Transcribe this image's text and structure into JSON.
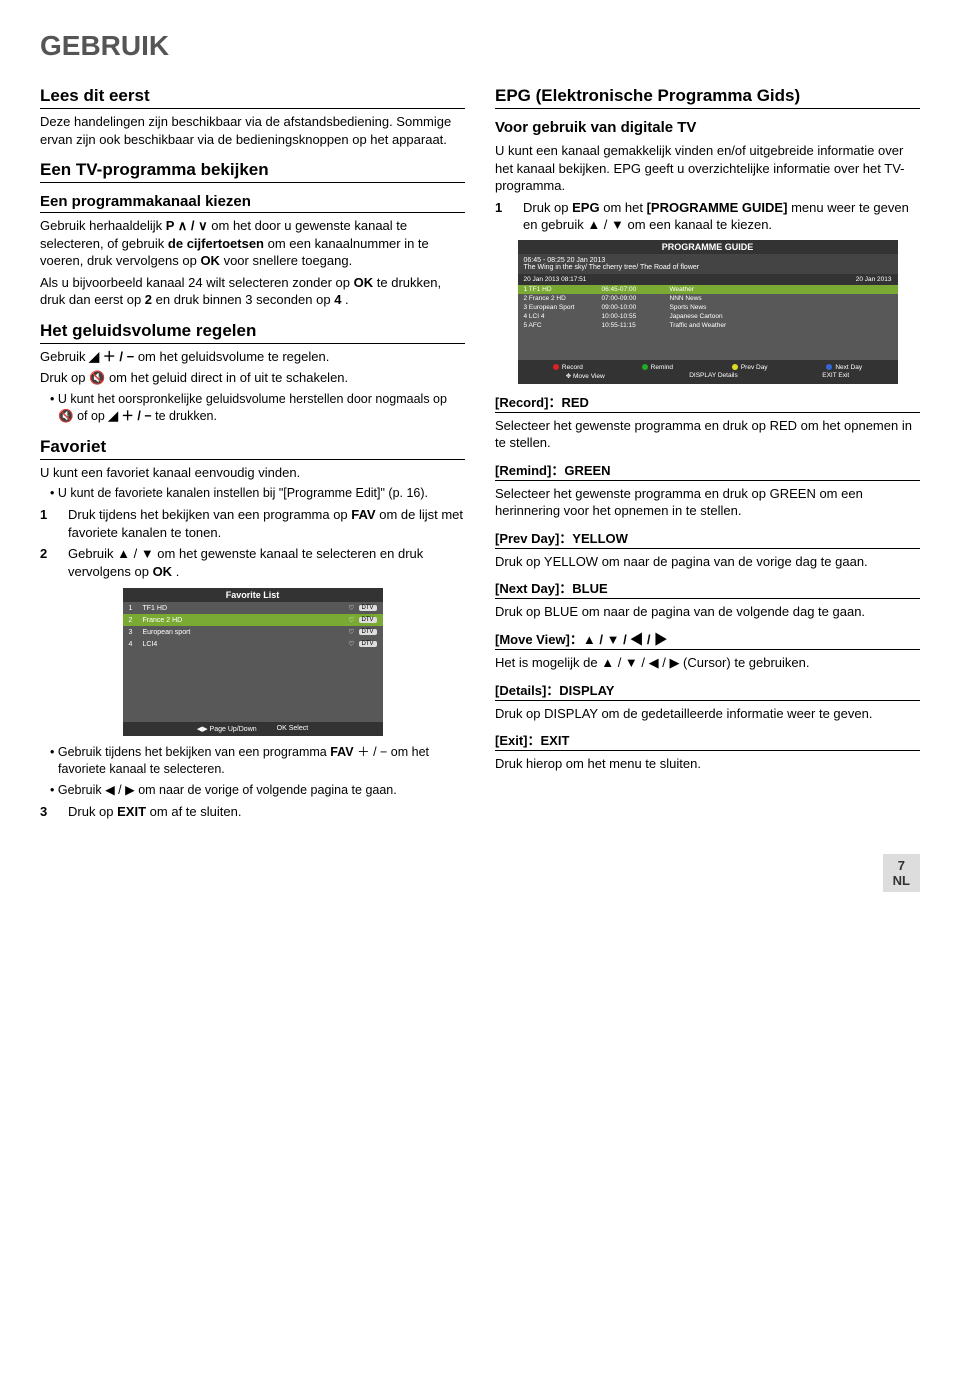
{
  "page_title": "GEBRUIK",
  "left": {
    "s1_h": "Lees dit eerst",
    "s1_p": "Deze handelingen zijn beschikbaar via de afstandsbediening. Sommige ervan zijn ook beschikbaar via de bedieningsknoppen op het apparaat.",
    "s2_h": "Een TV-programma bekijken",
    "s2_sub": "Een programmakanaal kiezen",
    "s2_p1a": "Gebruik herhaaldelijk ",
    "s2_p1b": " om het door u gewenste kanaal te selecteren, of gebruik ",
    "s2_p1c": "de cijfertoetsen",
    "s2_p1d": " om een kanaalnummer in te voeren, druk vervolgens op ",
    "s2_p1e": "OK",
    "s2_p1f": " voor snellere toegang.",
    "s2_p2a": "Als u bijvoorbeeld kanaal 24 wilt selecteren zonder op ",
    "s2_p2b": "OK",
    "s2_p2c": " te drukken, druk dan eerst op ",
    "s2_p2d": "2",
    "s2_p2e": " en druk binnen 3 seconden op ",
    "s2_p2f": "4",
    "s2_p2g": ".",
    "s3_h": "Het geluidsvolume regelen",
    "s3_p1a": "Gebruik ",
    "s3_p1b": " om het geluidsvolume te regelen.",
    "s3_p2a": "Druk op ",
    "s3_p2b": " om het geluid direct in of uit te schakelen.",
    "s3_note_a": "• U kunt het oorspronkelijke geluidsvolume herstellen door nogmaals op ",
    "s3_note_b": " of op ",
    "s3_note_c": " te drukken.",
    "s4_h": "Favoriet",
    "s4_p": "U kunt een favoriet kanaal eenvoudig vinden.",
    "s4_note": "• U kunt de favoriete kanalen instellen bij \"[Programme Edit]\" (p. 16).",
    "s4_step1a": "Druk tijdens het bekijken van een programma op ",
    "s4_step1b": "FAV",
    "s4_step1c": " om de lijst met favoriete kanalen te tonen.",
    "s4_step2a": "Gebruik ▲ / ▼ om het gewenste kanaal te selecteren en druk vervolgens op ",
    "s4_step2b": "OK",
    "s4_step2c": ".",
    "fav_fig": {
      "title": "Favorite List",
      "rows": [
        {
          "n": "1",
          "name": "TF1 HD",
          "tag": "DTV"
        },
        {
          "n": "2",
          "name": "France 2 HD",
          "tag": "DTV"
        },
        {
          "n": "3",
          "name": "European sport",
          "tag": "DTV"
        },
        {
          "n": "4",
          "name": "LCI4",
          "tag": "DTV"
        }
      ],
      "foot_l": "◀▶ Page Up/Down",
      "foot_r": "OK  Select"
    },
    "s4_note2a": "• Gebruik tijdens het bekijken van een programma ",
    "s4_note2b_bold": "FAV",
    "s4_note2c": " ＋ / − om het favoriete kanaal te selecteren.",
    "s4_note3": "• Gebruik ◀ / ▶ om naar de vorige of volgende pagina te gaan.",
    "s4_step3a": "Druk op ",
    "s4_step3b": "EXIT",
    "s4_step3c": " om af te sluiten."
  },
  "right": {
    "epg_h": "EPG (Elektronische Programma Gids)",
    "epg_sub": "Voor gebruik van digitale TV",
    "epg_p": "U kunt een kanaal gemakkelijk vinden en/of uitgebreide informatie over het kanaal bekijken. EPG geeft u overzichtelijke informatie over het TV-programma.",
    "epg_step1a": "Druk op ",
    "epg_step1b": "EPG",
    "epg_step1c": " om het ",
    "epg_step1d": "[PROGRAMME GUIDE]",
    "epg_step1e": " menu weer te geven en gebruik ▲ / ▼ om een kanaal te kiezen.",
    "epg_fig": {
      "title": "PROGRAMME GUIDE",
      "time_line": "06:45 - 08:25  20 Jan 2013",
      "desc": "The Wing in the sky/ The cherry tree/ The Road of flower",
      "date_l": "20 Jan 2013 08:17:51",
      "date_r": "20 Jan 2013",
      "rows": [
        {
          "c1": "1 TF1 HD",
          "c2": "06:45-07:00",
          "c3": "Weather"
        },
        {
          "c1": "2 France 2 HD",
          "c2": "07:00-09:00",
          "c3": "NNN News"
        },
        {
          "c1": "3 European Sport",
          "c2": "09:00-10:00",
          "c3": "Sports News"
        },
        {
          "c1": "4 LCI 4",
          "c2": "10:00-10:55",
          "c3": "Japanese Cartoon"
        },
        {
          "c1": "5 AFC",
          "c2": "10:55-11:15",
          "c3": "Traffic and Weather"
        }
      ],
      "foot1": {
        "a": "Record",
        "b": "Remind",
        "c": "Prev Day",
        "d": "Next Day"
      },
      "foot2": {
        "a": "✥ Move View",
        "b": "DISPLAY Details",
        "c": "EXIT  Exit"
      }
    },
    "sec": [
      {
        "h": "[Record]：RED",
        "p": "Selecteer het gewenste programma en druk op RED om het opnemen in te stellen."
      },
      {
        "h": "[Remind]：GREEN",
        "p": "Selecteer het gewenste programma en druk op GREEN om een herinnering voor het opnemen in te stellen."
      },
      {
        "h": "[Prev Day]：YELLOW",
        "p": "Druk op YELLOW om naar de pagina van de vorige dag te gaan."
      },
      {
        "h": "[Next Day]：BLUE",
        "p": "Druk op BLUE om naar de pagina van de volgende dag te gaan."
      },
      {
        "h": "[Move View]：▲ / ▼ / ◀ / ▶",
        "p": "Het is mogelijk de ▲ / ▼ / ◀ / ▶ (Cursor) te gebruiken."
      },
      {
        "h": "[Details]：DISPLAY",
        "p": "Druk op DISPLAY om de gedetailleerde informatie weer te geven."
      },
      {
        "h": "[Exit]：EXIT",
        "p": "Druk hierop om het menu te sluiten."
      }
    ]
  },
  "sym": {
    "p_up_down": "P ∧ / ∨",
    "vol": "◢ ＋ / −",
    "mute": "🔇"
  },
  "footer": {
    "num": "7",
    "lang": "NL"
  }
}
